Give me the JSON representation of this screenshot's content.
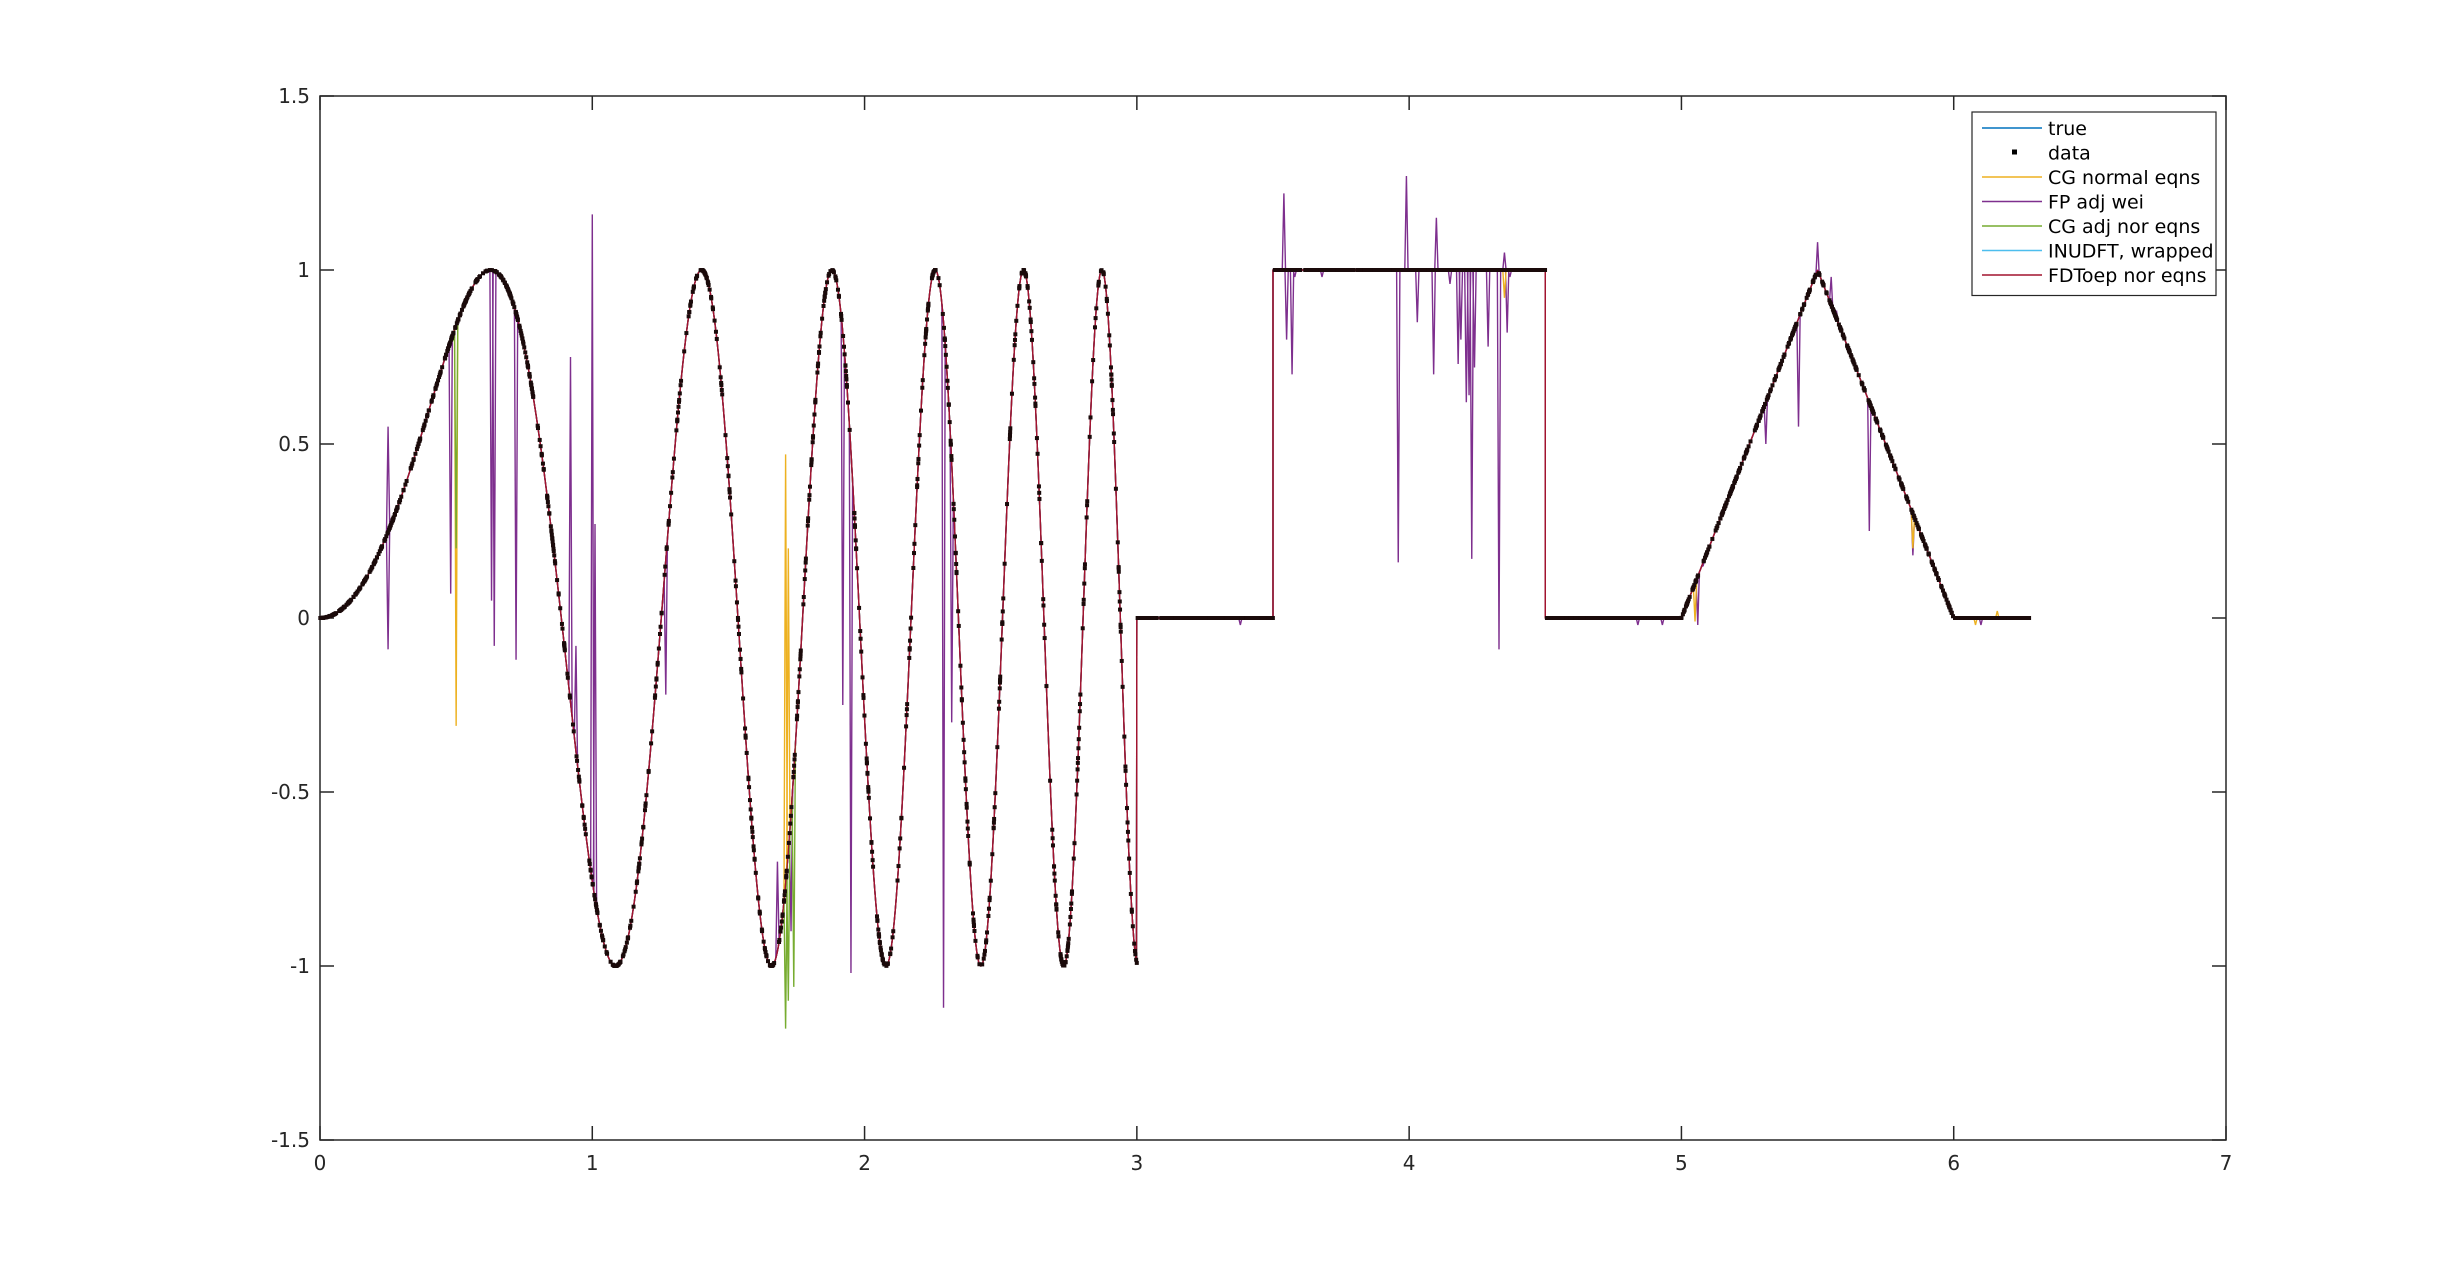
{
  "chart_data": {
    "type": "line",
    "title": "",
    "xlabel": "",
    "ylabel": "",
    "xlim": [
      0,
      7
    ],
    "ylim": [
      -1.5,
      1.5
    ],
    "xticks": [
      0,
      1,
      2,
      3,
      4,
      5,
      6,
      7
    ],
    "xtick_labels": [
      "0",
      "1",
      "2",
      "3",
      "4",
      "5",
      "6",
      "7"
    ],
    "yticks": [
      -1.5,
      -1,
      -0.5,
      0,
      0.5,
      1,
      1.5
    ],
    "ytick_labels": [
      "-1.5",
      "-1",
      "-0.5",
      "0",
      "0.5",
      "1",
      "1.5"
    ],
    "grid": false,
    "legend_position": "top-right",
    "underlying_signal": {
      "segments": [
        {
          "x_range": [
            0,
            3
          ],
          "description": "sin(4t^2)"
        },
        {
          "x_range": [
            3,
            3.5
          ],
          "value": 0
        },
        {
          "x_range": [
            3.5,
            4.5
          ],
          "value": 1
        },
        {
          "x_range": [
            4.5,
            5
          ],
          "value": 0
        },
        {
          "x_range": [
            5,
            5.5
          ],
          "description": "ramp from 0 to 1"
        },
        {
          "x_range": [
            5.5,
            6
          ],
          "description": "ramp from 1 to 0"
        },
        {
          "x_range": [
            6,
            6.28
          ],
          "value": 0
        }
      ]
    },
    "series": [
      {
        "name": "true",
        "color": "#0072bd",
        "style": "line"
      },
      {
        "name": "data",
        "color": "#000000",
        "style": "markers"
      },
      {
        "name": "CG normal eqns",
        "color": "#edb120",
        "style": "line"
      },
      {
        "name": "FP adj wei",
        "color": "#7e2f8e",
        "style": "line"
      },
      {
        "name": "CG adj nor eqns",
        "color": "#77ac30",
        "style": "line"
      },
      {
        "name": "INUDFT, wrapped",
        "color": "#4dbeee",
        "style": "line"
      },
      {
        "name": "FDToep nor eqns",
        "color": "#a2142f",
        "style": "line"
      }
    ],
    "spikes": {
      "FP adj wei": [
        [
          0.25,
          -0.09
        ],
        [
          0.25,
          0.55
        ],
        [
          0.48,
          0.07
        ],
        [
          0.63,
          0.05
        ],
        [
          0.64,
          -0.08
        ],
        [
          0.72,
          -0.12
        ],
        [
          0.92,
          0.75
        ],
        [
          0.94,
          -0.08
        ],
        [
          1.0,
          1.16
        ],
        [
          1.01,
          0.27
        ],
        [
          1.27,
          -0.22
        ],
        [
          1.68,
          -0.7
        ],
        [
          1.73,
          -0.9
        ],
        [
          1.92,
          -0.25
        ],
        [
          1.95,
          -1.02
        ],
        [
          2.29,
          -1.12
        ],
        [
          2.32,
          -0.3
        ],
        [
          3.38,
          -0.02
        ],
        [
          3.54,
          1.22
        ],
        [
          3.55,
          0.8
        ],
        [
          3.57,
          0.7
        ],
        [
          3.58,
          0.98
        ],
        [
          3.68,
          0.98
        ],
        [
          3.96,
          0.16
        ],
        [
          3.99,
          1.27
        ],
        [
          4.03,
          0.85
        ],
        [
          4.09,
          0.7
        ],
        [
          4.1,
          1.15
        ],
        [
          4.15,
          0.96
        ],
        [
          4.18,
          0.73
        ],
        [
          4.19,
          0.8
        ],
        [
          4.21,
          0.62
        ],
        [
          4.22,
          0.64
        ],
        [
          4.23,
          0.17
        ],
        [
          4.24,
          0.72
        ],
        [
          4.29,
          0.78
        ],
        [
          4.33,
          -0.09
        ],
        [
          4.35,
          1.05
        ],
        [
          4.36,
          0.82
        ],
        [
          4.37,
          0.98
        ],
        [
          4.84,
          -0.02
        ],
        [
          4.93,
          -0.02
        ],
        [
          5.06,
          -0.02
        ],
        [
          5.08,
          0.15
        ],
        [
          5.31,
          0.5
        ],
        [
          5.43,
          0.55
        ],
        [
          5.5,
          1.08
        ],
        [
          5.55,
          0.98
        ],
        [
          5.57,
          0.88
        ],
        [
          5.69,
          0.25
        ],
        [
          5.85,
          0.18
        ],
        [
          6.1,
          -0.02
        ]
      ],
      "CG normal eqns": [
        [
          0.5,
          -0.31
        ],
        [
          1.71,
          0.47
        ],
        [
          1.72,
          0.2
        ],
        [
          4.35,
          0.92
        ],
        [
          4.8,
          0.0
        ],
        [
          5.05,
          -0.01
        ],
        [
          5.85,
          0.2
        ],
        [
          6.08,
          -0.02
        ],
        [
          6.16,
          0.02
        ]
      ],
      "CG adj nor eqns": [
        [
          0.49,
          0.8
        ],
        [
          0.5,
          0.2
        ],
        [
          1.71,
          -1.18
        ],
        [
          1.72,
          -1.1
        ],
        [
          1.74,
          -1.06
        ]
      ]
    }
  }
}
